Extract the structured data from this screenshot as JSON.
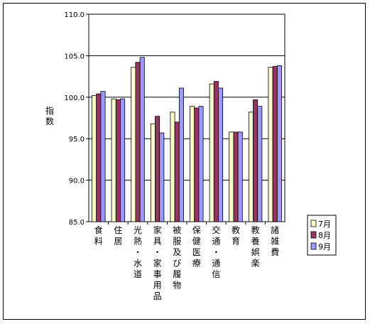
{
  "chart_data": {
    "type": "bar",
    "ylabel": "指数",
    "ylim": [
      85.0,
      110.0
    ],
    "yticks": [
      "85.0",
      "90.0",
      "95.0",
      "100.0",
      "105.0",
      "110.0"
    ],
    "grid": true,
    "legend_position": "right",
    "categories": [
      "食料",
      "住居",
      "光熱・水道",
      "家具・家事用品",
      "被服及び履物",
      "保健医療",
      "交通・通信",
      "教育",
      "教養娯楽",
      "諸雑費"
    ],
    "series": [
      {
        "name": "7月",
        "color": "#FFFFCC",
        "values": [
          100.2,
          99.8,
          103.6,
          96.8,
          98.2,
          98.9,
          101.6,
          95.8,
          98.2,
          103.6
        ]
      },
      {
        "name": "8月",
        "color": "#993366",
        "values": [
          100.4,
          99.7,
          104.2,
          97.7,
          97.0,
          98.7,
          101.9,
          95.8,
          99.7,
          103.7
        ]
      },
      {
        "name": "9月",
        "color": "#9999FF",
        "values": [
          100.7,
          99.8,
          104.8,
          95.7,
          101.1,
          98.9,
          101.1,
          95.8,
          98.9,
          103.8
        ]
      }
    ]
  }
}
